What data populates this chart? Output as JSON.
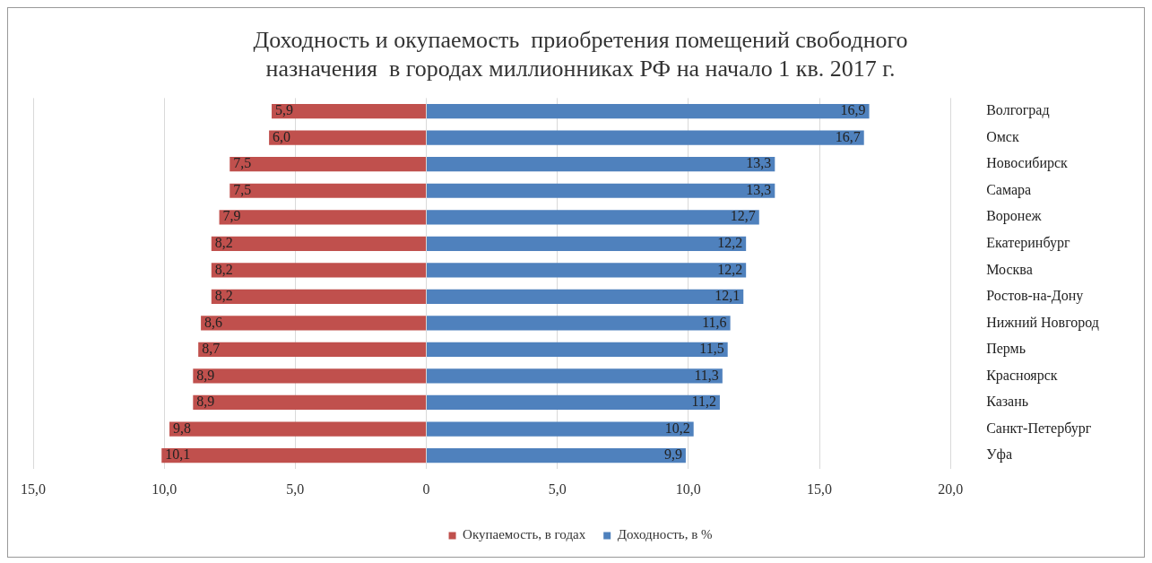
{
  "chart_data": {
    "type": "bar",
    "orientation": "horizontal",
    "title": "Доходность и окупаемость  приобретения помещений свободного назначения  в городах миллионниках РФ на начало 1 кв. 2017 г.",
    "categories": [
      "Волгоград",
      "Омск",
      "Новосибирск",
      "Самара",
      "Воронеж",
      "Екатеринбург",
      "Москва",
      "Ростов-на-Дону",
      "Нижний Новгород",
      "Пермь",
      "Красноярск",
      "Казань",
      "Санкт-Петербург",
      "Уфа"
    ],
    "series": [
      {
        "name": "Окупаемость, в годах",
        "color": "#c0504d",
        "base": [
          -5.9,
          -6.0,
          -7.5,
          -7.5,
          -7.9,
          -8.2,
          -8.2,
          -8.2,
          -8.6,
          -8.7,
          -8.9,
          -8.9,
          -9.8,
          -10.1
        ],
        "values": [
          5.9,
          6.0,
          7.5,
          7.5,
          7.9,
          8.2,
          8.2,
          8.2,
          8.6,
          8.7,
          8.9,
          8.9,
          9.8,
          10.1
        ],
        "value_labels": [
          "5,9",
          "6,0",
          "7,5",
          "7,5",
          "7,9",
          "8,2",
          "8,2",
          "8,2",
          "8,6",
          "8,7",
          "8,9",
          "8,9",
          "9,8",
          "10,1"
        ]
      },
      {
        "name": "Доходность, в %",
        "color": "#4f81bd",
        "values": [
          16.9,
          16.7,
          13.3,
          13.3,
          12.7,
          12.2,
          12.2,
          12.1,
          11.6,
          11.5,
          11.3,
          11.2,
          10.2,
          9.9
        ],
        "value_labels": [
          "16,9",
          "16,7",
          "13,3",
          "13,3",
          "12,7",
          "12,2",
          "12,2",
          "12,1",
          "11,6",
          "11,5",
          "11,3",
          "11,2",
          "10,2",
          "9,9"
        ]
      }
    ],
    "xlim": [
      -15,
      20
    ],
    "xticks": [
      {
        "value": -15,
        "label": "15,0"
      },
      {
        "value": -10,
        "label": "10,0"
      },
      {
        "value": -5,
        "label": "5,0"
      },
      0,
      {
        "value": 5,
        "label": "5,0"
      },
      {
        "value": 10,
        "label": "10,0"
      },
      {
        "value": 15,
        "label": "15,0"
      },
      {
        "value": 20,
        "label": "20,0"
      }
    ],
    "grid": "x",
    "legend": "bottom"
  }
}
